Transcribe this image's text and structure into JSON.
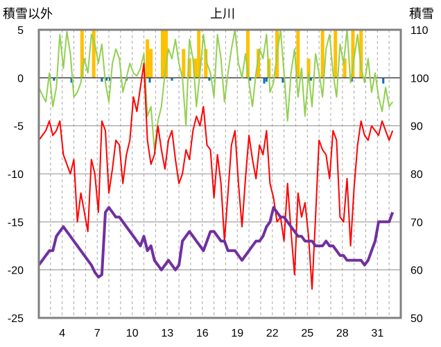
{
  "chart_data": {
    "type": "line",
    "title": "上川",
    "ylabel_left": "積雪以外",
    "ylabel_right": "積雪",
    "x_ticks": [
      "4",
      "7",
      "10",
      "13",
      "16",
      "19",
      "22",
      "25",
      "28",
      "31"
    ],
    "x_tick_days": [
      4,
      7,
      10,
      13,
      16,
      19,
      22,
      25,
      28,
      31
    ],
    "x_range": [
      2,
      33
    ],
    "ylim_left": [
      -25,
      5
    ],
    "ylim_right": [
      50,
      110
    ],
    "y_ticks_left": [
      "5",
      "0",
      "-5",
      "-10",
      "-15",
      "-20",
      "-25"
    ],
    "y_ticks_right": [
      "110",
      "100",
      "90",
      "80",
      "70",
      "60",
      "50"
    ],
    "series": [
      {
        "name": "snowfall_orange_bars",
        "kind": "bar_from_zero",
        "color": "#FFC000",
        "x": [
          5.7,
          6.7,
          11.3,
          11.6,
          12.6,
          12.9,
          14.4,
          14.9,
          15.4,
          15.7,
          16.3,
          19.9,
          20.8,
          21.7,
          22.4,
          24.2,
          25.1,
          26.3,
          27.4,
          28.2,
          28.9,
          29.6
        ],
        "values": [
          5,
          5,
          4,
          3,
          5,
          5,
          3,
          2,
          2,
          5,
          3,
          5,
          3,
          2,
          5,
          5,
          2,
          5,
          5,
          2,
          5,
          5
        ]
      },
      {
        "name": "precipitation_blue_bars",
        "kind": "bar_from_zero",
        "color": "#0070C0",
        "x": [
          3.3,
          4.8,
          7.4,
          7.8,
          8.1,
          9.5,
          11.1,
          11.5,
          13.4,
          16.6,
          20.1,
          21.3,
          21.5,
          22.9,
          25.3,
          28.8,
          31.5
        ],
        "values": [
          -0.3,
          -0.5,
          -0.4,
          -0.3,
          -0.3,
          -0.3,
          -0.4,
          -0.5,
          -0.3,
          -0.3,
          -0.3,
          -0.6,
          -0.4,
          -0.5,
          -0.3,
          -0.4,
          -0.6
        ]
      },
      {
        "name": "temperature_max",
        "kind": "line",
        "axis": "left",
        "color": "#92D050",
        "x": [
          2,
          2.3,
          2.6,
          2.9,
          3.2,
          3.5,
          3.8,
          4.1,
          4.4,
          4.7,
          5,
          5.3,
          5.6,
          5.9,
          6.2,
          6.5,
          6.8,
          7.1,
          7.4,
          7.7,
          8,
          8.3,
          8.6,
          8.9,
          9.2,
          9.5,
          9.8,
          10.1,
          10.4,
          10.7,
          11,
          11.3,
          11.6,
          11.9,
          12.2,
          12.5,
          12.8,
          13.1,
          13.4,
          13.7,
          14,
          14.3,
          14.6,
          14.9,
          15.2,
          15.5,
          15.8,
          16.1,
          16.4,
          16.7,
          17,
          17.3,
          17.6,
          17.9,
          18.2,
          18.5,
          18.8,
          19.1,
          19.4,
          19.7,
          20,
          20.3,
          20.6,
          20.9,
          21.2,
          21.5,
          21.8,
          22.1,
          22.4,
          22.7,
          23,
          23.3,
          23.6,
          23.9,
          24.2,
          24.5,
          24.8,
          25.1,
          25.4,
          25.7,
          26,
          26.3,
          26.6,
          26.9,
          27.2,
          27.5,
          27.8,
          28.1,
          28.4,
          28.7,
          29,
          29.3,
          29.6,
          29.9,
          30.2,
          30.5,
          30.8,
          31.1,
          31.4,
          31.7,
          32,
          32.3
        ],
        "values": [
          -1,
          -1.8,
          -2.5,
          0.5,
          -3,
          -1,
          4.5,
          1,
          4.8,
          2.5,
          -2,
          -1.5,
          -0.5,
          2,
          0.5,
          4.5,
          3.5,
          1.5,
          3.5,
          -0.5,
          -2.5,
          1.5,
          3,
          2,
          -1.5,
          0,
          1.5,
          0.5,
          0.2,
          1,
          2.5,
          -4,
          -3,
          -7.5,
          -4.5,
          -3,
          0.5,
          3,
          2,
          4,
          1.5,
          0,
          -5,
          4,
          2,
          -3,
          0.5,
          4.5,
          1.5,
          0.5,
          -2,
          4.5,
          2,
          -2.5,
          0.5,
          3,
          5,
          1.5,
          0,
          2.5,
          -0.5,
          -3,
          0.5,
          3,
          2,
          4.5,
          -1.5,
          -0.5,
          2.5,
          5,
          0.5,
          -4.5,
          0.5,
          3,
          -2,
          1,
          -4,
          0.5,
          -3,
          2.5,
          0.5,
          -2,
          3,
          4.5,
          0.5,
          -2,
          3.5,
          1.5,
          5,
          -0.5,
          2,
          4.5,
          1,
          -0.5,
          2,
          -1.5,
          0.5,
          -2,
          -3.5,
          -1,
          -3,
          -2.5
        ]
      },
      {
        "name": "temperature_min",
        "kind": "line",
        "axis": "left",
        "color": "#FF0000",
        "x": [
          2,
          2.3,
          2.6,
          2.9,
          3.2,
          3.5,
          3.8,
          4.1,
          4.4,
          4.7,
          5,
          5.3,
          5.6,
          5.9,
          6.2,
          6.5,
          6.8,
          7.1,
          7.4,
          7.7,
          8,
          8.3,
          8.6,
          8.9,
          9.2,
          9.5,
          9.8,
          10.1,
          10.4,
          10.7,
          11,
          11.3,
          11.6,
          11.9,
          12.2,
          12.5,
          12.8,
          13.1,
          13.4,
          13.7,
          14,
          14.3,
          14.6,
          14.9,
          15.2,
          15.5,
          15.8,
          16.1,
          16.4,
          16.7,
          17,
          17.3,
          17.6,
          17.9,
          18.2,
          18.5,
          18.8,
          19.1,
          19.4,
          19.7,
          20,
          20.3,
          20.6,
          20.9,
          21.2,
          21.5,
          21.8,
          22.1,
          22.4,
          22.7,
          23,
          23.3,
          23.6,
          23.9,
          24.2,
          24.5,
          24.8,
          25.1,
          25.4,
          25.7,
          26,
          26.3,
          26.6,
          26.9,
          27.2,
          27.5,
          27.8,
          28.1,
          28.4,
          28.7,
          29,
          29.3,
          29.6,
          29.9,
          30.2,
          30.5,
          30.8,
          31.1,
          31.4,
          31.7,
          32,
          32.3
        ],
        "values": [
          -6.5,
          -6,
          -5.5,
          -4.5,
          -6,
          -5.5,
          -4.5,
          -8,
          -9,
          -10,
          -8.5,
          -15,
          -12,
          -14,
          -16,
          -8.5,
          -10,
          -14,
          -4.5,
          -5.5,
          -12,
          -9.5,
          -6.5,
          -7,
          -11,
          -8,
          -6.5,
          -2,
          -3.5,
          -1,
          1.5,
          -6.5,
          -9,
          -8,
          -5,
          -7.5,
          -9.5,
          -6.5,
          -5.5,
          -8.5,
          -11,
          -10,
          -7.5,
          -8.5,
          -5.5,
          -4,
          -5,
          -3,
          -7,
          -7.5,
          -12.5,
          -8,
          -11,
          -17,
          -12,
          -7,
          -5.5,
          -11,
          -15.5,
          -10.5,
          -6,
          -8.5,
          -10.5,
          -7,
          -8,
          -5.5,
          -11,
          -12.5,
          -15,
          -14.5,
          -17,
          -11,
          -16,
          -20.5,
          -12,
          -14.5,
          -13,
          -16.5,
          -22,
          -14.5,
          -6.5,
          -7.5,
          -8,
          -10.5,
          -5.5,
          -6.5,
          -14.5,
          -15,
          -10.5,
          -17.5,
          -11.5,
          -7,
          -4.5,
          -6,
          -6.5,
          -5,
          -5.5,
          -6,
          -4.5,
          -5.5,
          -6.5,
          -5.5
        ]
      },
      {
        "name": "snow_depth",
        "kind": "line",
        "axis": "right",
        "color": "#7030A0",
        "x": [
          2,
          2.3,
          2.6,
          2.9,
          3.2,
          3.5,
          3.8,
          4.1,
          4.4,
          4.7,
          5,
          5.3,
          5.6,
          5.9,
          6.2,
          6.5,
          6.8,
          7.1,
          7.4,
          7.7,
          8,
          8.3,
          8.6,
          8.9,
          9.2,
          9.5,
          9.8,
          10.1,
          10.4,
          10.7,
          11,
          11.3,
          11.6,
          11.9,
          12.2,
          12.5,
          12.8,
          13.1,
          13.4,
          13.7,
          14,
          14.3,
          14.6,
          14.9,
          15.2,
          15.5,
          15.8,
          16.1,
          16.4,
          16.7,
          17,
          17.3,
          17.6,
          17.9,
          18.2,
          18.5,
          18.8,
          19.1,
          19.4,
          19.7,
          20,
          20.3,
          20.6,
          20.9,
          21.2,
          21.5,
          21.8,
          22.1,
          22.4,
          22.7,
          23,
          23.3,
          23.6,
          23.9,
          24.2,
          24.5,
          24.8,
          25.1,
          25.4,
          25.7,
          26,
          26.3,
          26.6,
          26.9,
          27.2,
          27.5,
          27.8,
          28.1,
          28.4,
          28.7,
          29,
          29.3,
          29.6,
          29.9,
          30.2,
          30.5,
          30.8,
          31.1,
          31.4,
          31.7,
          32,
          32.3
        ],
        "values": [
          61,
          62,
          63,
          64,
          64,
          67,
          68,
          69,
          68,
          67,
          66,
          65,
          64,
          63,
          62,
          61,
          59.5,
          58.5,
          59,
          72,
          73,
          72,
          71,
          71,
          70,
          69,
          68,
          67,
          66,
          65,
          67,
          64,
          65,
          62,
          61,
          60,
          61,
          62,
          61,
          60,
          61,
          66,
          67,
          68,
          67,
          66,
          65,
          64,
          66,
          68,
          68,
          67,
          66,
          66,
          64,
          64,
          64,
          63,
          62,
          63,
          64,
          65,
          66,
          66,
          67,
          69,
          70,
          73,
          72,
          71,
          71,
          70,
          69,
          68,
          67,
          67,
          66,
          66,
          66,
          65,
          65,
          65,
          66,
          65,
          65,
          64,
          63,
          63,
          62,
          62,
          62,
          62,
          62,
          61,
          62,
          64,
          66,
          70,
          70,
          70,
          70,
          72
        ]
      }
    ]
  }
}
